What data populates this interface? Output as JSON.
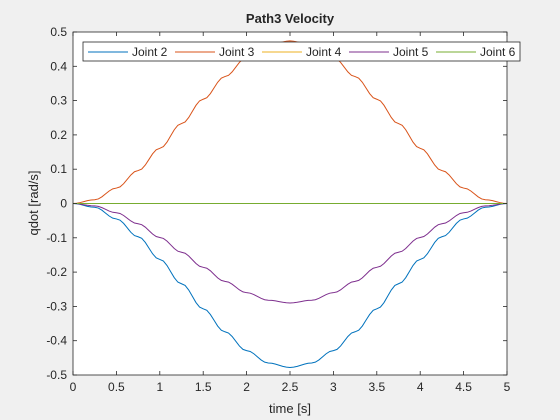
{
  "chart_data": {
    "type": "line",
    "title": "Path3 Velocity",
    "xlabel": "time [s]",
    "ylabel": "qdot [rad/s]",
    "xlim": [
      0,
      5
    ],
    "ylim": [
      -0.5,
      0.5
    ],
    "xticks": [
      0,
      0.5,
      1,
      1.5,
      2,
      2.5,
      3,
      3.5,
      4,
      4.5,
      5
    ],
    "xtick_labels": [
      "0",
      "0.5",
      "1",
      "1.5",
      "2",
      "2.5",
      "3",
      "3.5",
      "4",
      "4.5",
      "5"
    ],
    "yticks": [
      -0.5,
      -0.4,
      -0.3,
      -0.2,
      -0.1,
      0,
      0.1,
      0.2,
      0.3,
      0.4,
      0.5
    ],
    "ytick_labels": [
      "-0.5",
      "-0.4",
      "-0.3",
      "-0.2",
      "-0.1",
      "0",
      "0.1",
      "0.2",
      "0.3",
      "0.4",
      "0.5"
    ],
    "grid": false,
    "legend_position": "top, horizontal",
    "x": [
      0,
      0.25,
      0.5,
      0.75,
      1,
      1.25,
      1.5,
      1.75,
      2,
      2.25,
      2.5,
      2.75,
      3,
      3.25,
      3.5,
      3.75,
      4,
      4.25,
      4.5,
      4.75,
      5
    ],
    "series": [
      {
        "name": "Joint 2",
        "color": "#0072BD",
        "values": [
          0,
          -0.011,
          -0.045,
          -0.097,
          -0.163,
          -0.234,
          -0.307,
          -0.374,
          -0.429,
          -0.465,
          -0.478,
          -0.465,
          -0.429,
          -0.374,
          -0.307,
          -0.234,
          -0.163,
          -0.097,
          -0.045,
          -0.011,
          0
        ]
      },
      {
        "name": "Joint 3",
        "color": "#D95319",
        "values": [
          0,
          0.011,
          0.045,
          0.096,
          0.161,
          0.233,
          0.304,
          0.37,
          0.425,
          0.462,
          0.474,
          0.462,
          0.425,
          0.37,
          0.304,
          0.233,
          0.161,
          0.096,
          0.045,
          0.011,
          0
        ]
      },
      {
        "name": "Joint 4",
        "color": "#EDB120",
        "values": [
          0,
          0,
          0,
          0,
          0,
          0,
          0,
          0,
          0,
          0,
          0,
          0,
          0,
          0,
          0,
          0,
          0,
          0,
          0,
          0,
          0
        ]
      },
      {
        "name": "Joint 5",
        "color": "#7E2F8E",
        "values": [
          0,
          -0.007,
          -0.027,
          -0.059,
          -0.099,
          -0.142,
          -0.186,
          -0.227,
          -0.26,
          -0.282,
          -0.29,
          -0.282,
          -0.26,
          -0.227,
          -0.186,
          -0.142,
          -0.099,
          -0.059,
          -0.027,
          -0.007,
          0
        ]
      },
      {
        "name": "Joint 6",
        "color": "#77AC30",
        "values": [
          0,
          0,
          0,
          0,
          0,
          0,
          0,
          0,
          0,
          0,
          0,
          0,
          0,
          0,
          0,
          0,
          0,
          0,
          0,
          0,
          0
        ]
      }
    ]
  }
}
